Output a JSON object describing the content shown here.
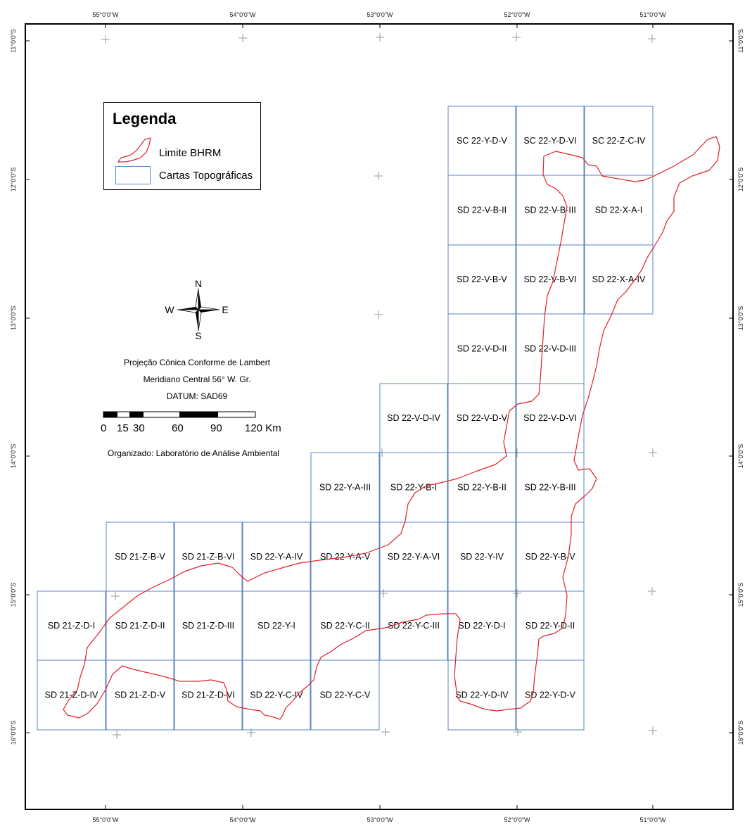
{
  "map": {
    "lon_labels": [
      "55°0'0\"W",
      "54°0'0\"W",
      "53°0'0\"W",
      "52°0'0\"W",
      "51°0'0\"W"
    ],
    "lat_labels": [
      "11°0'0\"S",
      "12°0'0\"S",
      "13°0'0\"S",
      "14°0'0\"S",
      "15°0'0\"S",
      "16°0'0\"S"
    ],
    "grid_cells": [
      "SC 22-Y-D-V",
      "SC 22-Y-D-VI",
      "SC 22-Z-C-IV",
      "SD 22-V-B-II",
      "SD 22-V-B-III",
      "SD 22-X-A-I",
      "SD 22-V-B-V",
      "SD 22-V-B-VI",
      "SD 22-X-A-IV",
      "SD 22-V-D-II",
      "SD 22-V-D-III",
      "SD 22-V-D-IV",
      "SD 22-V-D-V",
      "SD 22-V-D-VI",
      "SD 22-Y-A-III",
      "SD 22-Y-B-I",
      "SD 22-Y-B-II",
      "SD 22-Y-B-III",
      "SD 21-Z-B-V",
      "SD 21-Z-B-VI",
      "SD 22-Y-A-IV",
      "SD 22-Y-A-V",
      "SD 22-Y-A-VI",
      "SD 22-Y-IV",
      "SD 22-Y-B-V",
      "SD 21-Z-D-I",
      "SD 21-Z-D-II",
      "SD 21-Z-D-III",
      "SD 22-Y-I",
      "SD 22-Y-C-II",
      "SD 22-Y-C-III",
      "SD 22-Y-D-I",
      "SD 22-Y-D-II",
      "SD 21-Z-D-IV",
      "SD 21-Z-D-V",
      "SD 21-Z-D-VI",
      "SD 22-Y-C-IV",
      "SD 22-Y-C-V",
      "SD 22-Y-D-IV",
      "SD 22-Y-D-V"
    ]
  },
  "legend": {
    "title": "Legenda",
    "items": [
      {
        "label": "Limite BHRM",
        "color": "#e0202a"
      },
      {
        "label": "Cartas Topográficas",
        "color": "#5b86c2"
      }
    ]
  },
  "north_arrow": {
    "n": "N",
    "s": "S",
    "e": "E",
    "w": "W"
  },
  "info": {
    "projection": "Projeção Cônica Conforme de Lambert",
    "meridian": "Meridiano Central 56° W. Gr.",
    "datum": "DATUM: SAD69",
    "organized": "Organizado: Laboratório de Análise Ambiental"
  },
  "scale": {
    "labels": [
      "0",
      "15",
      "30",
      "60",
      "90",
      "120 Km"
    ]
  }
}
